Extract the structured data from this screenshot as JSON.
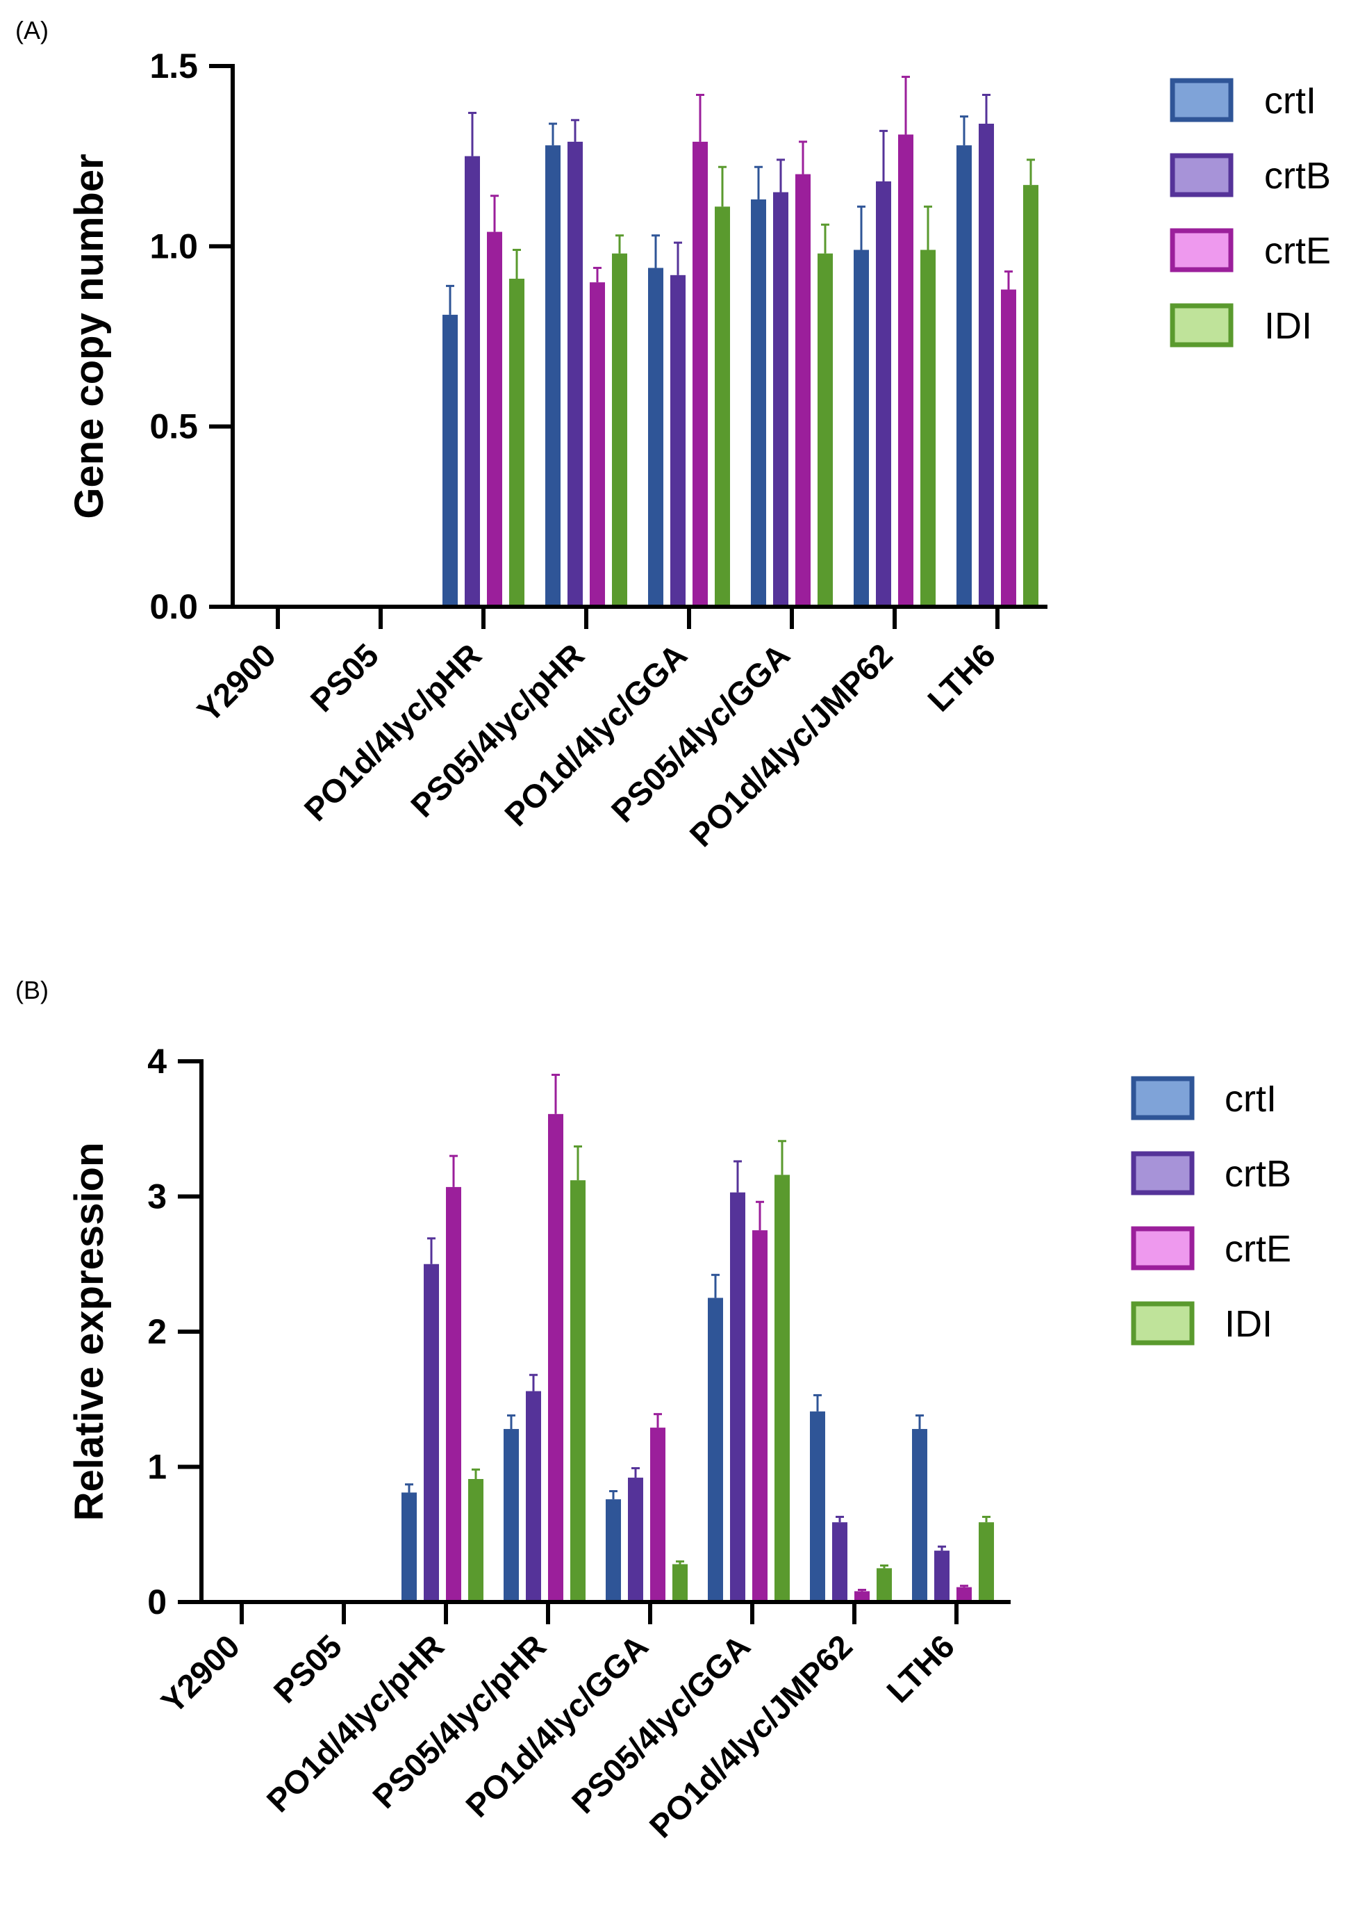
{
  "chart_data": [
    {
      "type": "bar",
      "panel_label": "(A)",
      "title": "",
      "xlabel": "",
      "ylabel": "Gene copy number",
      "ylim": [
        0,
        1.5
      ],
      "yticks": [
        "0.0",
        "0.5",
        "1.0",
        "1.5"
      ],
      "ytick_values": [
        0,
        0.5,
        1.0,
        1.5
      ],
      "categories": [
        "Y2900",
        "PS05",
        "PO1d/4lyc/pHR",
        "PS05/4lyc/pHR",
        "PO1d/4lyc/GGA",
        "PS05/4lyc/GGA",
        "PO1d/4lyc/JMP62",
        "LTH6"
      ],
      "legend_position": "right",
      "series": [
        {
          "name": "crtI",
          "color": "#2f5597",
          "legend_fill": "#7fa3d8",
          "values": [
            0,
            0,
            0.81,
            1.28,
            0.94,
            1.13,
            0.99,
            1.28
          ],
          "errors": [
            0,
            0,
            0.08,
            0.06,
            0.09,
            0.09,
            0.12,
            0.08
          ]
        },
        {
          "name": "crtB",
          "color": "#553399",
          "legend_fill": "#a793d8",
          "values": [
            0,
            0,
            1.25,
            1.29,
            0.92,
            1.15,
            1.18,
            1.34
          ],
          "errors": [
            0,
            0,
            0.12,
            0.06,
            0.09,
            0.09,
            0.14,
            0.08
          ]
        },
        {
          "name": "crtE",
          "color": "#9b1f9b",
          "legend_fill": "#ee99ee",
          "values": [
            0,
            0,
            1.04,
            0.9,
            1.29,
            1.2,
            1.31,
            0.88
          ],
          "errors": [
            0,
            0,
            0.1,
            0.04,
            0.13,
            0.09,
            0.16,
            0.05
          ]
        },
        {
          "name": "IDI",
          "color": "#5a9a2e",
          "legend_fill": "#bfe39a",
          "values": [
            0,
            0,
            0.91,
            0.98,
            1.11,
            0.98,
            0.99,
            1.17
          ],
          "errors": [
            0,
            0,
            0.08,
            0.05,
            0.11,
            0.08,
            0.12,
            0.07
          ]
        }
      ]
    },
    {
      "type": "bar",
      "panel_label": "(B)",
      "title": "",
      "xlabel": "",
      "ylabel": "Relative expression",
      "ylim": [
        0,
        4
      ],
      "yticks": [
        "0",
        "1",
        "2",
        "3",
        "4"
      ],
      "ytick_values": [
        0,
        1,
        2,
        3,
        4
      ],
      "categories": [
        "Y2900",
        "PS05",
        "PO1d/4lyc/pHR",
        "PS05/4lyc/pHR",
        "PO1d/4lyc/GGA",
        "PS05/4lyc/GGA",
        "PO1d/4lyc/JMP62",
        "LTH6"
      ],
      "legend_position": "right",
      "series": [
        {
          "name": "crtI",
          "color": "#2f5597",
          "legend_fill": "#7fa3d8",
          "values": [
            0,
            0,
            0.81,
            1.28,
            0.76,
            2.25,
            1.41,
            1.28
          ],
          "errors": [
            0,
            0,
            0.06,
            0.1,
            0.06,
            0.17,
            0.12,
            0.1
          ]
        },
        {
          "name": "crtB",
          "color": "#553399",
          "legend_fill": "#a793d8",
          "values": [
            0,
            0,
            2.5,
            1.56,
            0.92,
            3.03,
            0.59,
            0.38
          ],
          "errors": [
            0,
            0,
            0.19,
            0.12,
            0.07,
            0.23,
            0.04,
            0.03
          ]
        },
        {
          "name": "crtE",
          "color": "#9b1f9b",
          "legend_fill": "#ee99ee",
          "values": [
            0,
            0,
            3.07,
            3.61,
            1.29,
            2.75,
            0.08,
            0.11
          ],
          "errors": [
            0,
            0,
            0.23,
            0.29,
            0.1,
            0.21,
            0.01,
            0.01
          ]
        },
        {
          "name": "IDI",
          "color": "#5a9a2e",
          "legend_fill": "#bfe39a",
          "values": [
            0,
            0,
            0.91,
            3.12,
            0.28,
            3.16,
            0.25,
            0.59
          ],
          "errors": [
            0,
            0,
            0.07,
            0.25,
            0.02,
            0.25,
            0.02,
            0.04
          ]
        }
      ]
    }
  ]
}
